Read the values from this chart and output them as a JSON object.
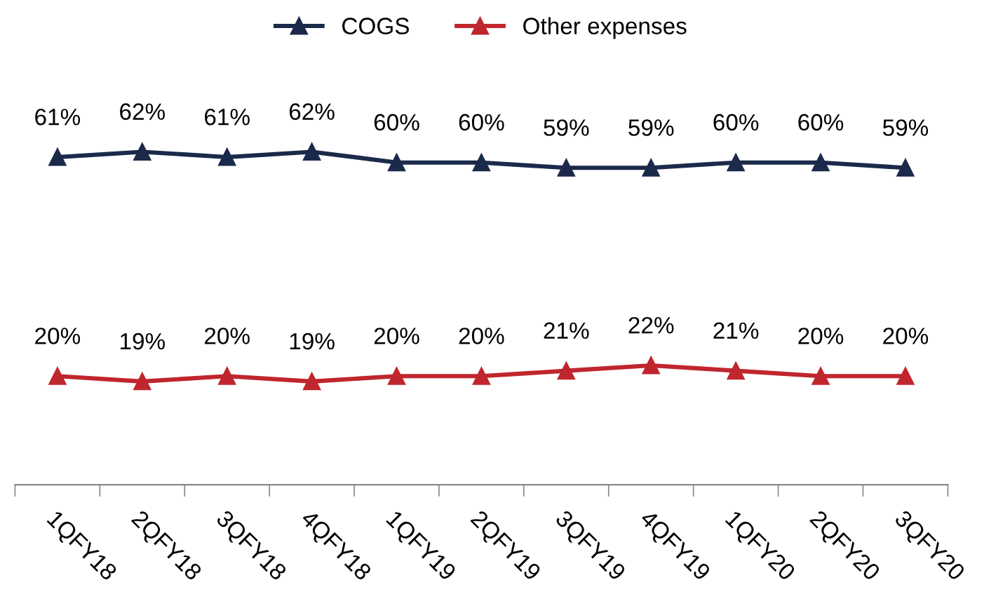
{
  "chart_data": {
    "type": "line",
    "categories": [
      "1QFY18",
      "2QFY18",
      "3QFY18",
      "4QFY18",
      "1QFY19",
      "2QFY19",
      "3QFY19",
      "4QFY19",
      "1QFY20",
      "2QFY20",
      "3QFY20"
    ],
    "series": [
      {
        "name": "COGS",
        "color": "#1b2a4a",
        "values": [
          61,
          62,
          61,
          62,
          60,
          60,
          59,
          59,
          60,
          60,
          59
        ],
        "value_labels": [
          "61%",
          "62%",
          "61%",
          "62%",
          "60%",
          "60%",
          "59%",
          "59%",
          "60%",
          "60%",
          "59%"
        ]
      },
      {
        "name": "Other expenses",
        "color": "#c0262d",
        "values": [
          20,
          19,
          20,
          19,
          20,
          20,
          21,
          22,
          21,
          20,
          20
        ],
        "value_labels": [
          "20%",
          "19%",
          "20%",
          "19%",
          "20%",
          "20%",
          "21%",
          "22%",
          "21%",
          "20%",
          "20%"
        ]
      }
    ],
    "tick_labels": "x",
    "marker": "triangle",
    "line_style": "solid",
    "legend": "top",
    "grid": false
  }
}
